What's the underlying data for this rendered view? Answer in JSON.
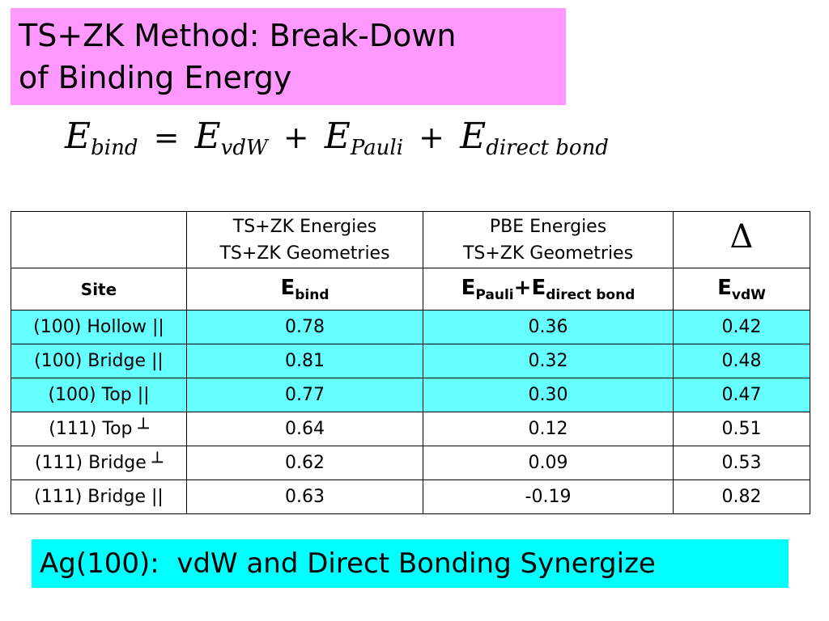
{
  "title": {
    "line1": "TS+ZK Method: Break-Down",
    "line2": "of Binding Energy"
  },
  "equation": {
    "symbol": "E",
    "sub_bind": "bind",
    "equals": "=",
    "sub_vdw": "vdW",
    "plus": "+",
    "sub_pauli": "Pauli",
    "sub_direct": "direct bond"
  },
  "table": {
    "header": {
      "col2_line1": "TS+ZK Energies",
      "col2_line2": "TS+ZK Geometries",
      "col3_line1": "PBE Energies",
      "col3_line2": "TS+ZK Geometries",
      "col4": "Δ"
    },
    "subheader": {
      "site": "Site",
      "ebind_main": "E",
      "ebind_sub": "bind",
      "epauli_main": "E",
      "epauli_sub": "Pauli",
      "plus": "+",
      "edirect_main": "E",
      "edirect_sub": "direct bond",
      "evdw_main": "E",
      "evdw_sub": "vdW"
    },
    "rows": [
      {
        "site": "(100) Hollow ||",
        "ebind": "0.78",
        "epauli_direct": "0.36",
        "evdw": "0.42"
      },
      {
        "site": "(100) Bridge ||",
        "ebind": "0.81",
        "epauli_direct": "0.32",
        "evdw": "0.48"
      },
      {
        "site": "(100) Top ||",
        "ebind": "0.77",
        "epauli_direct": "0.30",
        "evdw": "0.47"
      },
      {
        "site": "(111) Top ┴",
        "ebind": "0.64",
        "epauli_direct": "0.12",
        "evdw": "0.51"
      },
      {
        "site": "(111) Bridge ┴",
        "ebind": "0.62",
        "epauli_direct": "0.09",
        "evdw": "0.53"
      },
      {
        "site": "(111) Bridge ||",
        "ebind": "0.63",
        "epauli_direct": "-0.19",
        "evdw": "0.82"
      }
    ]
  },
  "footer": "Ag(100):  vdW and Direct Bonding Synergize",
  "colors": {
    "title_bg": "#ff99ff",
    "highlight_row_bg": "#66ffff",
    "footer_bg": "#00ffff"
  }
}
